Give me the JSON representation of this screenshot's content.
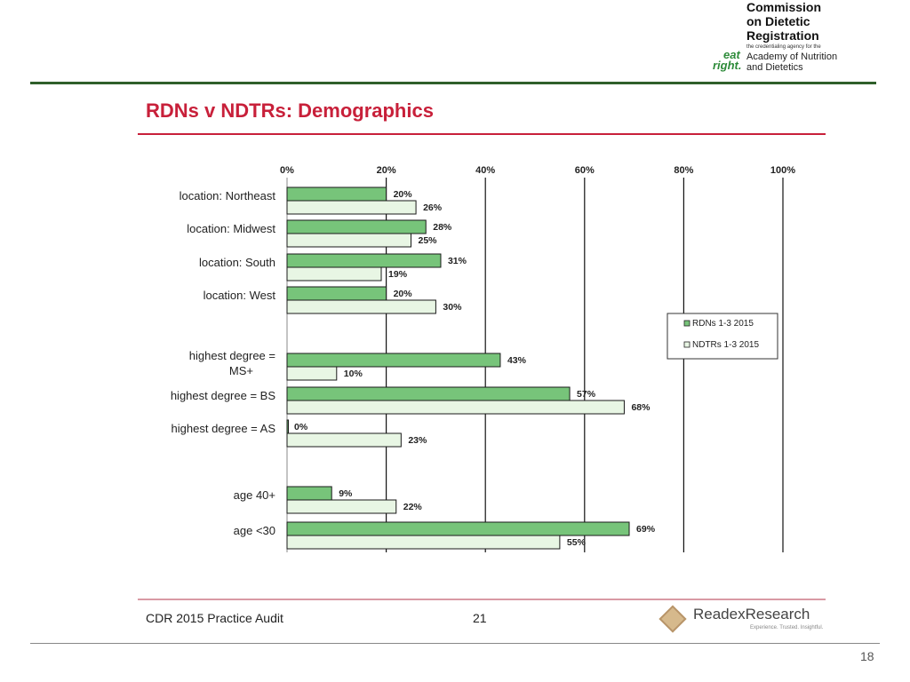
{
  "logo": {
    "title_lines": [
      "Commission",
      "on Dietetic",
      "Registration"
    ],
    "subtitle": "the credentialing agency for the",
    "academy_lines": [
      "Academy of Nutrition",
      "and Dietetics"
    ],
    "mark_top": "eat",
    "mark_bottom": "right."
  },
  "slide_title": "RDNs v NDTRs: Demographics",
  "footer": {
    "left": "CDR 2015 Practice Audit",
    "page": "21",
    "brand": "ReadexResearch",
    "tagline": "Experience. Trusted. Insightful."
  },
  "page_number": "18",
  "colors": {
    "title_red": "#c8203a",
    "rdn_green": "#77c47a",
    "ndtr_green": "#e8f6e4",
    "rule_green": "#2f5f2a"
  },
  "chart_data": {
    "type": "bar",
    "orientation": "horizontal",
    "x_ticks": [
      "0%",
      "20%",
      "40%",
      "60%",
      "80%",
      "100%"
    ],
    "xlim": [
      0,
      100
    ],
    "grid": true,
    "legend_position": "right",
    "categories": [
      [
        "location: Northeast"
      ],
      [
        "location: Midwest"
      ],
      [
        "location: South"
      ],
      [
        "location: West"
      ],
      [
        "highest degree =",
        "MS+"
      ],
      [
        "highest degree = BS"
      ],
      [
        "highest degree = AS"
      ],
      [
        "age 40+"
      ],
      [
        "age <30"
      ]
    ],
    "series": [
      {
        "name": "RDNs 1-3 2015",
        "color": "#77c47a",
        "values": [
          20,
          28,
          31,
          20,
          43,
          57,
          0,
          9,
          69
        ],
        "labels": [
          "20%",
          "28%",
          "31%",
          "20%",
          "43%",
          "57%",
          "0%",
          "9%",
          "69%"
        ]
      },
      {
        "name": "NDTRs 1-3 2015",
        "color": "#e8f6e4",
        "values": [
          26,
          25,
          19,
          30,
          10,
          68,
          23,
          22,
          55
        ],
        "labels": [
          "26%",
          "25%",
          "19%",
          "30%",
          "10%",
          "68%",
          "23%",
          "22%",
          "55%"
        ]
      }
    ]
  }
}
